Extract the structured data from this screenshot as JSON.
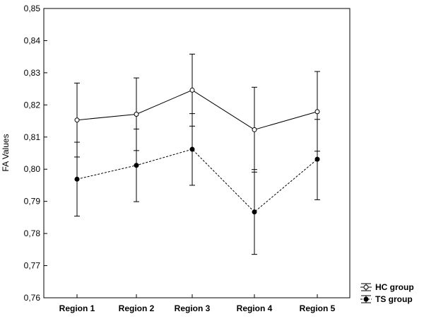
{
  "chart_data": {
    "type": "line",
    "title": "",
    "xlabel": "",
    "ylabel": "FA Values",
    "ylim": [
      0.76,
      0.85
    ],
    "yticks": [
      "0,76",
      "0,77",
      "0,78",
      "0,79",
      "0,80",
      "0,81",
      "0,82",
      "0,83",
      "0,84",
      "0,85"
    ],
    "categories": [
      "Region 1",
      "Region 2",
      "Region 3",
      "Region 4",
      "Region 5"
    ],
    "error_bars": true,
    "grid": false,
    "legend_position": "bottom-right, outside plot",
    "series": [
      {
        "name": "HC group",
        "marker": "open-circle",
        "line_style": "solid",
        "color": "#000000",
        "values": [
          0.8153,
          0.8171,
          0.8246,
          0.8123,
          0.8179
        ],
        "lower": [
          0.8038,
          0.8058,
          0.8134,
          0.7991,
          0.8056
        ],
        "upper": [
          0.8268,
          0.8284,
          0.8358,
          0.8255,
          0.8304
        ]
      },
      {
        "name": "TS group",
        "marker": "filled-circle",
        "line_style": "dashed",
        "color": "#000000",
        "values": [
          0.7969,
          0.8012,
          0.8062,
          0.7867,
          0.8031
        ],
        "lower": [
          0.7854,
          0.7899,
          0.795,
          0.7735,
          0.7905
        ],
        "upper": [
          0.8084,
          0.8125,
          0.8173,
          0.7999,
          0.8155
        ]
      }
    ]
  }
}
